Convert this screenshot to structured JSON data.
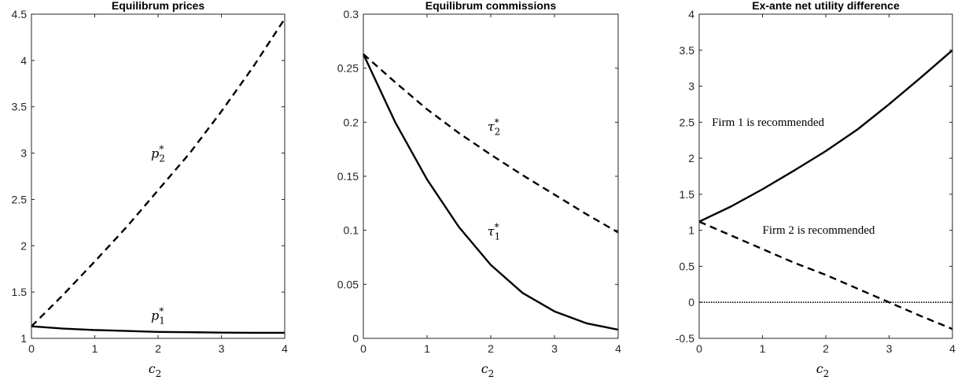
{
  "chart_data": [
    {
      "type": "line",
      "title": "Equilibrum prices",
      "xlabel": "c2",
      "ylabel": "",
      "xlim": [
        0,
        4
      ],
      "ylim": [
        1,
        4.5
      ],
      "xticks": [
        0,
        1,
        2,
        3,
        4
      ],
      "yticks": [
        1,
        1.5,
        2,
        2.5,
        3,
        3.5,
        4,
        4.5
      ],
      "series": [
        {
          "name": "p*1",
          "style": "solid",
          "x": [
            0,
            0.5,
            1,
            1.5,
            2,
            2.5,
            3,
            3.5,
            4
          ],
          "y": [
            1.13,
            1.105,
            1.09,
            1.08,
            1.07,
            1.066,
            1.062,
            1.06,
            1.06
          ]
        },
        {
          "name": "p*2",
          "style": "dashed",
          "x": [
            0,
            0.5,
            1,
            1.5,
            2,
            2.5,
            3,
            3.5,
            4
          ],
          "y": [
            1.13,
            1.47,
            1.83,
            2.2,
            2.6,
            3.0,
            3.45,
            3.93,
            4.45
          ]
        }
      ],
      "annotations": [
        {
          "label": "p",
          "sub": "2",
          "sup": "*",
          "x": 2.0,
          "y": 2.95
        },
        {
          "label": "p",
          "sub": "1",
          "sup": "*",
          "x": 2.0,
          "y": 1.2
        }
      ]
    },
    {
      "type": "line",
      "title": "Equilibrum commissions",
      "xlabel": "c2",
      "ylabel": "",
      "xlim": [
        0,
        4
      ],
      "ylim": [
        0,
        0.3
      ],
      "xticks": [
        0,
        1,
        2,
        3,
        4
      ],
      "yticks": [
        0,
        0.05,
        0.1,
        0.15,
        0.2,
        0.25,
        0.3
      ],
      "series": [
        {
          "name": "τ*1",
          "style": "solid",
          "x": [
            0,
            0.5,
            1,
            1.5,
            2,
            2.5,
            3,
            3.5,
            4
          ],
          "y": [
            0.263,
            0.2,
            0.147,
            0.103,
            0.068,
            0.042,
            0.025,
            0.014,
            0.008
          ]
        },
        {
          "name": "τ*2",
          "style": "dashed",
          "x": [
            0,
            0.5,
            1,
            1.5,
            2,
            2.5,
            3,
            3.5,
            4
          ],
          "y": [
            0.263,
            0.237,
            0.212,
            0.19,
            0.17,
            0.151,
            0.133,
            0.115,
            0.098
          ]
        }
      ],
      "annotations": [
        {
          "label": "τ",
          "sub": "2",
          "sup": "*",
          "x": 2.05,
          "y": 0.192
        },
        {
          "label": "τ",
          "sub": "1",
          "sup": "*",
          "x": 2.05,
          "y": 0.095
        }
      ]
    },
    {
      "type": "line",
      "title": "Ex-ante net utility difference",
      "xlabel": "c2",
      "ylabel": "",
      "xlim": [
        0,
        4
      ],
      "ylim": [
        -0.5,
        4
      ],
      "xticks": [
        0,
        1,
        2,
        3,
        4
      ],
      "yticks": [
        -0.5,
        0,
        0.5,
        1,
        1.5,
        2,
        2.5,
        3,
        3.5,
        4
      ],
      "series": [
        {
          "name": "Firm 1 is recommended",
          "style": "solid",
          "x": [
            0,
            0.5,
            1,
            1.5,
            2,
            2.5,
            3,
            3.5,
            4
          ],
          "y": [
            1.12,
            1.33,
            1.57,
            1.83,
            2.1,
            2.4,
            2.75,
            3.12,
            3.5
          ]
        },
        {
          "name": "Firm 2 is recommended",
          "style": "dashed",
          "x": [
            0,
            0.5,
            1,
            1.5,
            2,
            2.5,
            3,
            3.5,
            4
          ],
          "y": [
            1.12,
            0.93,
            0.74,
            0.55,
            0.38,
            0.19,
            0.0,
            -0.19,
            -0.37
          ]
        },
        {
          "name": "zero",
          "style": "dotted",
          "x": [
            0,
            4
          ],
          "y": [
            0,
            0
          ]
        }
      ],
      "annotations": [
        {
          "text": "Firm 1 is recommended",
          "x": 0.2,
          "y": 2.45
        },
        {
          "text": "Firm 2 is recommended",
          "x": 1.0,
          "y": 0.95
        }
      ]
    }
  ]
}
